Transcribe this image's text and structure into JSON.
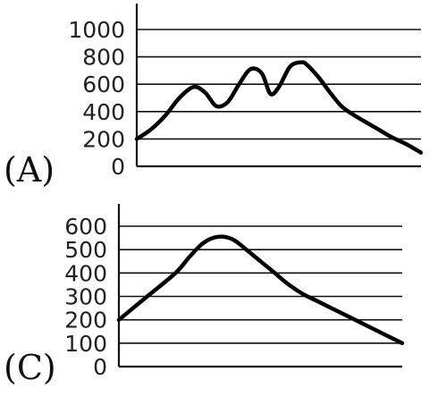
{
  "chart_data": [
    {
      "type": "line",
      "panel_label": "(A)",
      "yticks": [
        "1000",
        "800",
        "600",
        "400",
        "200",
        "0"
      ],
      "ylim": [
        0,
        1000
      ],
      "xlabel": "",
      "ylabel": "",
      "grid": true,
      "series": [
        {
          "x": [
            0,
            5,
            10,
            15,
            20,
            24,
            28,
            32,
            36,
            40,
            44,
            47,
            50,
            54,
            58,
            60,
            64,
            68,
            72,
            76,
            80,
            85,
            90,
            95,
            100
          ],
          "values": [
            200,
            270,
            370,
            500,
            580,
            540,
            440,
            470,
            600,
            710,
            680,
            530,
            580,
            730,
            760,
            740,
            650,
            540,
            440,
            380,
            330,
            270,
            210,
            160,
            100
          ]
        }
      ]
    },
    {
      "type": "line",
      "panel_label": "(C)",
      "yticks": [
        "600",
        "500",
        "400",
        "300",
        "200",
        "100",
        "0"
      ],
      "ylim": [
        0,
        600
      ],
      "xlabel": "",
      "ylabel": "",
      "grid": true,
      "series": [
        {
          "x": [
            0,
            10,
            20,
            25,
            30,
            35,
            40,
            45,
            50,
            55,
            60,
            65,
            70,
            75,
            80,
            85,
            90,
            95,
            100
          ],
          "values": [
            200,
            300,
            400,
            470,
            530,
            555,
            545,
            500,
            450,
            400,
            350,
            310,
            280,
            250,
            220,
            190,
            160,
            130,
            100
          ]
        }
      ]
    }
  ]
}
